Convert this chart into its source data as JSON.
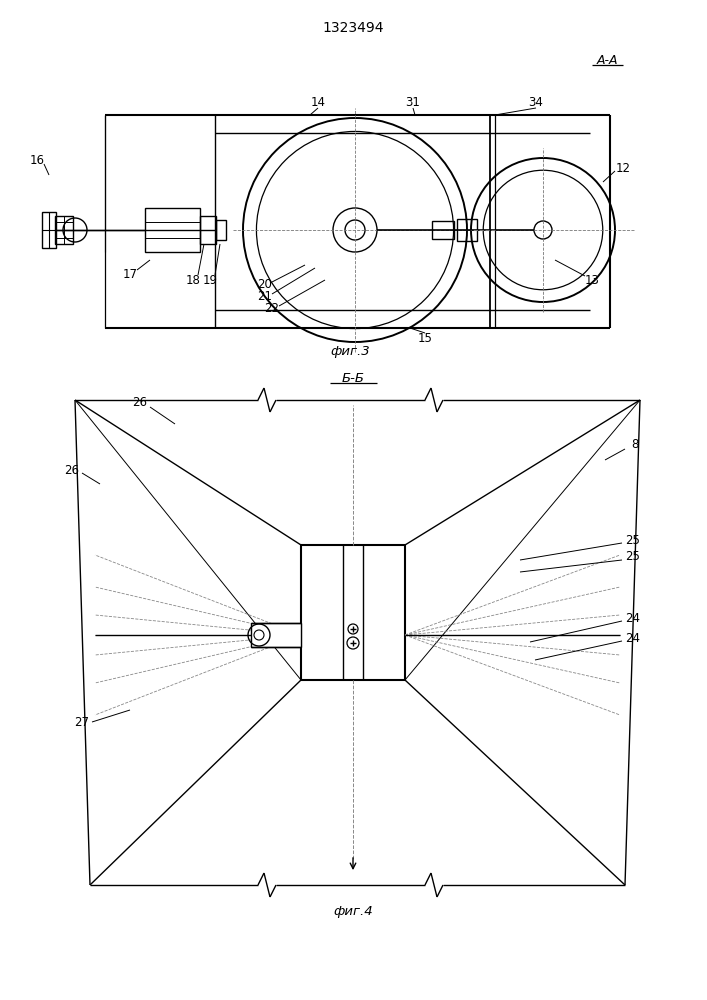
{
  "title": "1323494",
  "fig3_label": "А-А",
  "fig3_caption": "фиг.3",
  "fig4_section": "Б-Б",
  "fig4_caption": "фиг.4",
  "bg_color": "#ffffff",
  "line_color": "#000000",
  "lw": 1.0
}
